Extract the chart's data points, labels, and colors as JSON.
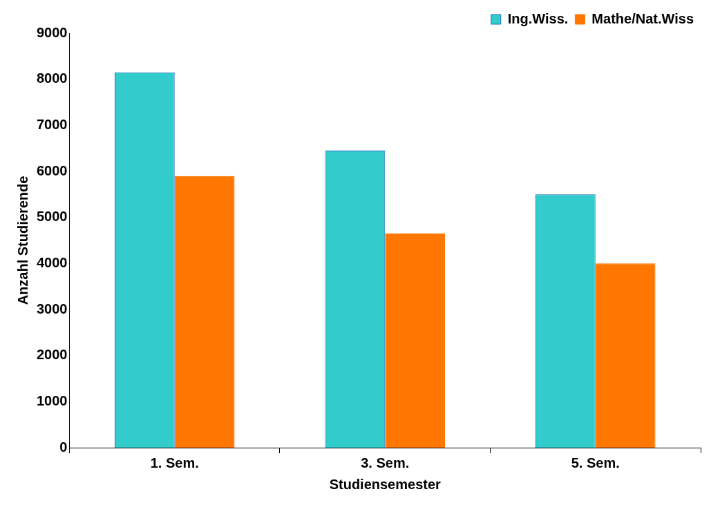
{
  "chart_data": {
    "type": "bar",
    "xlabel": "Studiensemester",
    "ylabel": "Anzahl Studierende",
    "categories": [
      "1. Sem.",
      "3. Sem.",
      "5. Sem."
    ],
    "series": [
      {
        "name": "Ing.Wiss.",
        "color": "#33cccc",
        "values": [
          8150,
          6450,
          5500
        ]
      },
      {
        "name": "Mathe/Nat.Wiss",
        "color": "#ff7700",
        "values": [
          5900,
          4650,
          4000
        ]
      }
    ],
    "ylim": [
      0,
      9000
    ],
    "yticks": [
      0,
      1000,
      2000,
      3000,
      4000,
      5000,
      6000,
      7000,
      8000,
      9000
    ],
    "grid": false,
    "legend": "top right"
  }
}
